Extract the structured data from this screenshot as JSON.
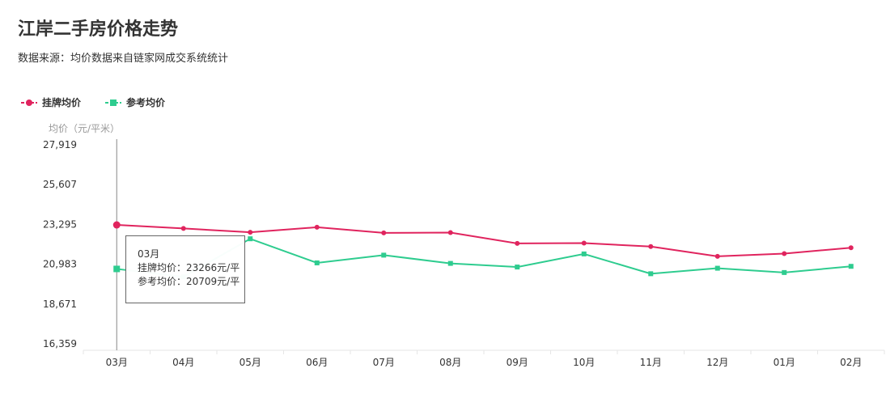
{
  "header": {
    "title": "江岸二手房价格走势",
    "subtitle": "数据来源：均价数据来自链家网成交系统统计"
  },
  "tooltip": {
    "month": "03月",
    "line1": "挂牌均价：23266元/平",
    "line2": "参考均价：20709元/平"
  },
  "colors": {
    "listing": "#e0245e",
    "reference": "#2ecc8f",
    "axis": "#999999",
    "grid": "#e6e6e6"
  },
  "chart_data": {
    "type": "line",
    "ylabel": "均价（元/平米）",
    "ylim": [
      16359,
      27919
    ],
    "yticks": [
      "27,919",
      "25,607",
      "23,295",
      "20,983",
      "18,671",
      "16,359"
    ],
    "ytick_values": [
      27919,
      25607,
      23295,
      20983,
      18671,
      16359
    ],
    "categories": [
      "03月",
      "04月",
      "05月",
      "06月",
      "07月",
      "08月",
      "09月",
      "10月",
      "11月",
      "12月",
      "01月",
      "02月"
    ],
    "series": [
      {
        "name": "挂牌均价",
        "values": [
          23266,
          23060,
          22840,
          23130,
          22800,
          22820,
          22190,
          22210,
          22010,
          21440,
          21600,
          21940
        ]
      },
      {
        "name": "参考均价",
        "values": [
          20709,
          20250,
          22460,
          21060,
          21510,
          21030,
          20820,
          21580,
          20430,
          20750,
          20500,
          20860
        ]
      }
    ],
    "legend": "top-left",
    "grid": false
  }
}
